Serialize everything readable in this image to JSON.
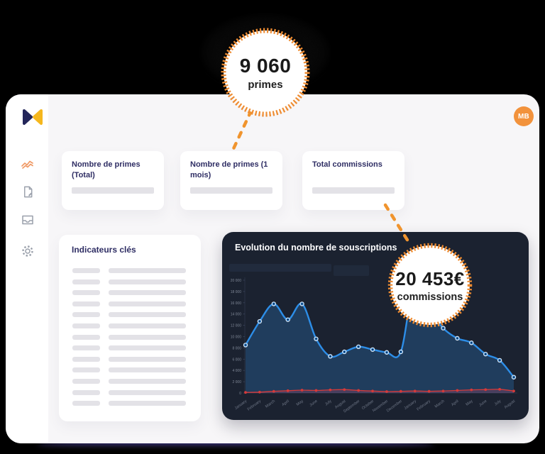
{
  "colors": {
    "accent_orange": "#ee8c32",
    "navy_text": "#2f2e64",
    "logo_navy": "#23265a",
    "logo_gold": "#f5b71d",
    "avatar_orange": "#f2923c",
    "chart_bg": "#1b2230",
    "chart_blue": "#2d8ee8",
    "chart_red": "#d63a3a",
    "sidebar_active_icon": "#f09a66",
    "sidebar_icon_gray": "#9aa0ab"
  },
  "header": {
    "avatar_initials": "MB"
  },
  "sidebar": {
    "logo": "bowtie-logo",
    "items": [
      {
        "icon": "trending-icon",
        "active": true
      },
      {
        "icon": "document-icon",
        "active": false
      },
      {
        "icon": "inbox-icon",
        "active": false
      },
      {
        "icon": "settings-icon",
        "active": false
      }
    ]
  },
  "callouts": [
    {
      "value": "9 060",
      "label": "primes"
    },
    {
      "value": "20 453€",
      "label": "commissions"
    }
  ],
  "stat_cards": [
    {
      "title": "Nombre de primes (Total)"
    },
    {
      "title": "Nombre de primes (1 mois)"
    },
    {
      "title": "Total commissions"
    }
  ],
  "indicators": {
    "title": "Indicateurs clés",
    "row_count": 13
  },
  "chart_card": {
    "title": "Evolution du nombre de souscriptions"
  },
  "chart_data": {
    "type": "area",
    "title": "Evolution du nombre de souscriptions",
    "x": [
      "January",
      "February",
      "March",
      "April",
      "May",
      "June",
      "July",
      "August",
      "September",
      "October",
      "November",
      "December",
      "January",
      "February",
      "March",
      "April",
      "May",
      "June",
      "July",
      "August"
    ],
    "series": [
      {
        "name": "souscriptions",
        "color": "#2d8ee8",
        "fill": "rgba(46,125,200,0.30)",
        "marker": "ring",
        "values": [
          8500,
          12700,
          15800,
          13000,
          15800,
          9600,
          6500,
          7300,
          8200,
          7700,
          7200,
          7300,
          20000,
          15000,
          11500,
          9700,
          8900,
          6900,
          5800,
          2800
        ]
      },
      {
        "name": "serie-secondaire",
        "color": "#d63a3a",
        "fill": "rgba(214,70,100,0.22)",
        "marker": "dot",
        "values": [
          100,
          150,
          300,
          400,
          500,
          450,
          550,
          600,
          450,
          350,
          250,
          300,
          350,
          300,
          350,
          450,
          550,
          600,
          650,
          350
        ]
      }
    ],
    "ylim": [
      0,
      20000
    ],
    "ytick_labels": [
      "20 000",
      "18 000",
      "16 000",
      "14 000",
      "12 000",
      "10 000",
      "8 000",
      "6 000",
      "4 000",
      "2 000",
      "0"
    ],
    "xlabel": "",
    "ylabel": "",
    "grid": false,
    "legend": "none"
  }
}
